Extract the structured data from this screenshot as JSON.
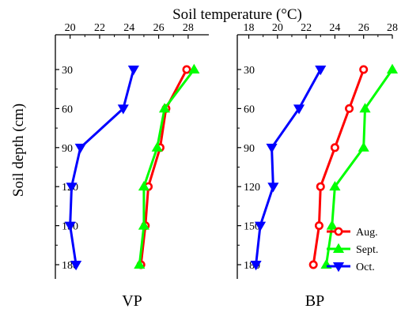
{
  "chart_data": {
    "type": "line",
    "title": "",
    "xlabel": "Soil temperature (°C)",
    "ylabel": "Soil depth  (cm)",
    "y_axis_inverted": true,
    "y_ticks": [
      30,
      60,
      90,
      120,
      150,
      180
    ],
    "grid": false,
    "legend": {
      "placement": "bottom-right",
      "entries": [
        "Aug.",
        "Sept.",
        "Oct."
      ]
    },
    "colors": {
      "Aug.": "#ff0000",
      "Sept.": "#00ff00",
      "Oct.": "#0000ff"
    },
    "markers": {
      "Aug.": "circle",
      "Sept.": "triangle-up",
      "Oct.": "triangle-down"
    },
    "panels": [
      {
        "name": "VP",
        "xlim": [
          19,
          29.4
        ],
        "x_ticks": [
          20,
          22,
          24,
          26,
          28
        ],
        "series": [
          {
            "name": "Aug.",
            "depth": [
              30,
              60,
              90,
              120,
              150,
              180
            ],
            "temperature": [
              27.9,
              26.5,
              26.1,
              25.3,
              25.1,
              24.8
            ]
          },
          {
            "name": "Sept.",
            "depth": [
              30,
              60,
              90,
              120,
              150,
              180
            ],
            "temperature": [
              28.4,
              26.4,
              25.9,
              25.0,
              25.0,
              24.7
            ]
          },
          {
            "name": "Oct.",
            "depth": [
              30,
              60,
              90,
              120,
              150,
              180
            ],
            "temperature": [
              24.3,
              23.6,
              20.7,
              20.1,
              20.0,
              20.4
            ]
          }
        ]
      },
      {
        "name": "BP",
        "xlim": [
          17.2,
          28
        ],
        "x_ticks": [
          18,
          20,
          22,
          24,
          26,
          28
        ],
        "series": [
          {
            "name": "Aug.",
            "depth": [
              30,
              60,
              90,
              120,
              150,
              180
            ],
            "temperature": [
              26.0,
              25.0,
              24.0,
              23.0,
              22.9,
              22.5
            ]
          },
          {
            "name": "Sept.",
            "depth": [
              30,
              60,
              90,
              120,
              150,
              180
            ],
            "temperature": [
              28.0,
              26.1,
              26.0,
              24.0,
              23.8,
              23.4
            ]
          },
          {
            "name": "Oct.",
            "depth": [
              30,
              60,
              90,
              120,
              150,
              180
            ],
            "temperature": [
              23.0,
              21.5,
              19.6,
              19.7,
              18.8,
              18.5
            ]
          }
        ]
      }
    ]
  }
}
